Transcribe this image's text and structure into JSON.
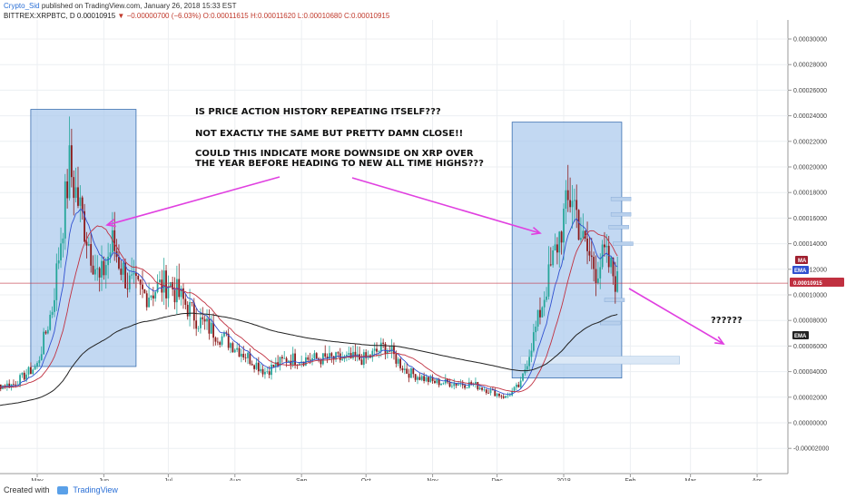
{
  "header": {
    "author": "Crypto_Sid",
    "published": "published on TradingView.com, January 26, 2018 15:33 EST",
    "symbol": "BITTREX:XRPBTC, D",
    "price": "0.00010915",
    "change": "▼ −0.00000700 (−6.03%)",
    "ohlc": "O:0.00011615 H:0.00011620 L:0.00010680 C:0.00010915"
  },
  "footer": {
    "created_with": "Created with",
    "brand": "TradingView"
  },
  "annotations": {
    "line1": "IS PRICE ACTION HISTORY REPEATING ITSELF???",
    "line2": "NOT EXACTLY THE SAME BUT PRETTY DAMN CLOSE!!",
    "line3a": "COULD THIS INDICATE MORE DOWNSIDE ON XRP OVER",
    "line3b": "THE YEAR BEFORE HEADING TO NEW ALL TIME HIGHS???",
    "question": "??????"
  },
  "badges": {
    "ma": "MA",
    "ema": "EMA",
    "price": "0.00010915",
    "ema2": "EMA"
  },
  "colors": {
    "up": "#26a69a",
    "down": "#8b1a1a",
    "highlight": "#a8c8ec",
    "arrow": "#e040e0",
    "ma_red": "#c03040",
    "ema_blue": "#3050d0",
    "ema_black": "#222222"
  },
  "chart_data": {
    "type": "candlestick",
    "ylim": [
      -3e-05,
      0.00031
    ],
    "y_ticks": [
      "0.00030000",
      "0.00028000",
      "0.00026000",
      "0.00024000",
      "0.00022000",
      "0.00020000",
      "0.00018000",
      "0.00016000",
      "0.00014000",
      "0.00012000",
      "0.00010000",
      "0.00008000",
      "0.00006000",
      "0.00004000",
      "0.00002000",
      "0.00000000",
      "-0.00002000"
    ],
    "x_ticks": [
      "May",
      "Jun",
      "Jul",
      "Aug",
      "Sep",
      "Oct",
      "Nov",
      "Dec",
      "2018",
      "Feb",
      "Mar",
      "Apr"
    ],
    "current_price": 0.00010915,
    "close_path": [
      [
        "2017-04-01",
        2.7e-05
      ],
      [
        "2017-04-20",
        3e-05
      ],
      [
        "2017-05-01",
        4.5e-05
      ],
      [
        "2017-05-08",
        9e-05
      ],
      [
        "2017-05-16",
        0.0002
      ],
      [
        "2017-05-22",
        0.00016
      ],
      [
        "2017-05-30",
        0.00011
      ],
      [
        "2017-06-05",
        0.00014
      ],
      [
        "2017-06-12",
        0.00011
      ],
      [
        "2017-06-20",
        0.0001
      ],
      [
        "2017-07-01",
        0.00011
      ],
      [
        "2017-07-15",
        8e-05
      ],
      [
        "2017-08-01",
        6e-05
      ],
      [
        "2017-08-15",
        4e-05
      ],
      [
        "2017-08-25",
        5e-05
      ],
      [
        "2017-09-15",
        5e-05
      ],
      [
        "2017-10-01",
        5e-05
      ],
      [
        "2017-10-10",
        6e-05
      ],
      [
        "2017-10-20",
        4e-05
      ],
      [
        "2017-11-01",
        3.2e-05
      ],
      [
        "2017-11-20",
        3e-05
      ],
      [
        "2017-12-05",
        2e-05
      ],
      [
        "2017-12-12",
        3e-05
      ],
      [
        "2017-12-20",
        8e-05
      ],
      [
        "2017-12-26",
        0.00012
      ],
      [
        "2018-01-01",
        0.00016
      ],
      [
        "2018-01-05",
        0.00018
      ],
      [
        "2018-01-10",
        0.00014
      ],
      [
        "2018-01-16",
        0.00012
      ],
      [
        "2018-01-20",
        0.00013
      ],
      [
        "2018-01-26",
        0.00010915
      ]
    ],
    "highlight_zones": [
      {
        "from": "2017-04-28",
        "to": "2017-06-16",
        "low": 4.4e-05,
        "high": 0.000245
      },
      {
        "from": "2017-12-08",
        "to": "2018-01-28",
        "low": 3.5e-05,
        "high": 0.000235
      }
    ],
    "annotations": [
      "IS PRICE ACTION HISTORY REPEATING ITSELF???",
      "NOT EXACTLY THE SAME BUT PRETTY DAMN CLOSE!!",
      "COULD THIS INDICATE MORE DOWNSIDE ON XRP OVER THE YEAR BEFORE HEADING TO NEW ALL TIME HIGHS???",
      "??????"
    ]
  }
}
